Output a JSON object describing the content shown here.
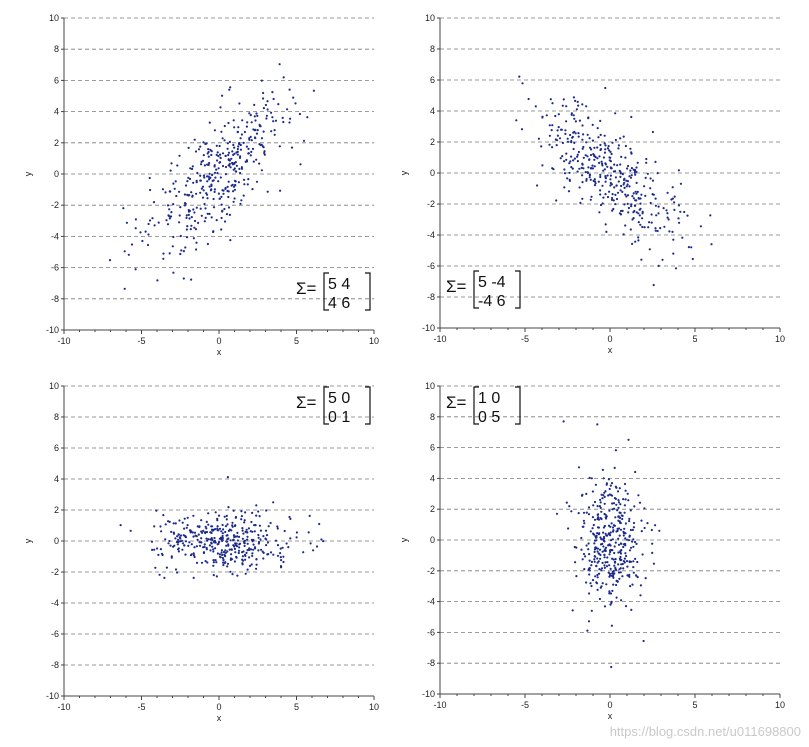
{
  "watermark": "https://blog.csdn.net/u011698800",
  "chart_data": [
    {
      "type": "scatter",
      "xlabel": "x",
      "ylabel": "y",
      "xlim": [
        -10,
        10
      ],
      "ylim": [
        -10,
        10
      ],
      "xticks": [
        -10,
        -5,
        0,
        5,
        10
      ],
      "yticks": [
        -10,
        -8,
        -6,
        -4,
        -2,
        0,
        2,
        4,
        6,
        8,
        10
      ],
      "grid": "horizontal dashed",
      "point_color": "#1c2a8a",
      "annotation": {
        "symbol": "Σ=",
        "matrix": [
          [
            "5",
            "4"
          ],
          [
            "4",
            "6"
          ]
        ],
        "placement": "bottom-right"
      },
      "distribution": {
        "mean": [
          0,
          0
        ],
        "covariance": [
          [
            5,
            4
          ],
          [
            4,
            6
          ]
        ],
        "n": 400
      },
      "points": []
    },
    {
      "type": "scatter",
      "xlabel": "x",
      "ylabel": "y",
      "xlim": [
        -10,
        10
      ],
      "ylim": [
        -10,
        10
      ],
      "xticks": [
        -10,
        -5,
        0,
        5,
        10
      ],
      "yticks": [
        -10,
        -8,
        -6,
        -4,
        -2,
        0,
        2,
        4,
        6,
        8,
        10
      ],
      "grid": "horizontal dashed",
      "point_color": "#1c2a8a",
      "annotation": {
        "symbol": "Σ=",
        "matrix": [
          [
            "5",
            "-4"
          ],
          [
            "-4",
            "6"
          ]
        ],
        "placement": "bottom-left"
      },
      "distribution": {
        "mean": [
          0,
          0
        ],
        "covariance": [
          [
            5,
            -4
          ],
          [
            -4,
            6
          ]
        ],
        "n": 400
      },
      "points": []
    },
    {
      "type": "scatter",
      "xlabel": "x",
      "ylabel": "y",
      "xlim": [
        -10,
        10
      ],
      "ylim": [
        -10,
        10
      ],
      "xticks": [
        -10,
        -5,
        0,
        5,
        10
      ],
      "yticks": [
        -10,
        -8,
        -6,
        -4,
        -2,
        0,
        2,
        4,
        6,
        8,
        10
      ],
      "grid": "horizontal dashed",
      "point_color": "#1c2a8a",
      "annotation": {
        "symbol": "Σ=",
        "matrix": [
          [
            "5",
            "0"
          ],
          [
            "0",
            "1"
          ]
        ],
        "placement": "top-right"
      },
      "distribution": {
        "mean": [
          0,
          0
        ],
        "covariance": [
          [
            5,
            0
          ],
          [
            0,
            1
          ]
        ],
        "n": 400
      },
      "points": []
    },
    {
      "type": "scatter",
      "xlabel": "x",
      "ylabel": "y",
      "xlim": [
        -10,
        10
      ],
      "ylim": [
        -10,
        10
      ],
      "xticks": [
        -10,
        -5,
        0,
        5,
        10
      ],
      "yticks": [
        -10,
        -8,
        -6,
        -4,
        -2,
        0,
        2,
        4,
        6,
        8,
        10
      ],
      "grid": "horizontal dashed",
      "point_color": "#1c2a8a",
      "annotation": {
        "symbol": "Σ=",
        "matrix": [
          [
            "1",
            "0"
          ],
          [
            "0",
            "5"
          ]
        ],
        "placement": "top-left"
      },
      "distribution": {
        "mean": [
          0,
          0
        ],
        "covariance": [
          [
            1,
            0
          ],
          [
            0,
            5
          ]
        ],
        "n": 400
      },
      "points": []
    }
  ]
}
